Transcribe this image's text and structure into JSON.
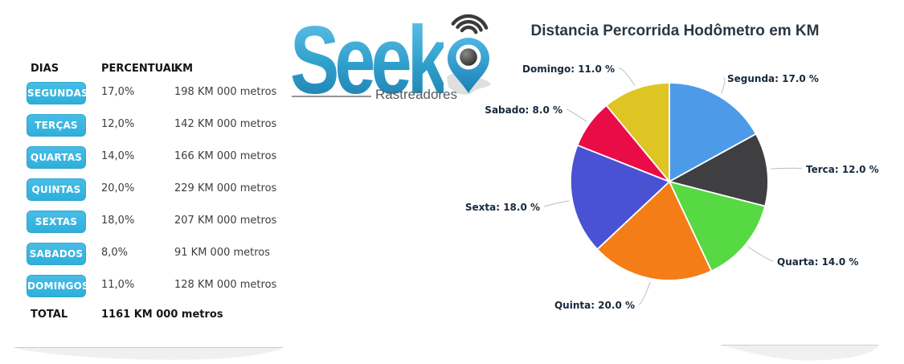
{
  "table": {
    "headers": [
      "DIAS",
      "PERCENTUAL",
      "KM"
    ],
    "rows": [
      {
        "day": "SEGUNDAS",
        "percent": "17,0%",
        "km": "198 KM 000 metros"
      },
      {
        "day": "TERÇAS",
        "percent": "12,0%",
        "km": "142 KM 000 metros"
      },
      {
        "day": "QUARTAS",
        "percent": "14,0%",
        "km": "166 KM 000 metros"
      },
      {
        "day": "QUINTAS",
        "percent": "20,0%",
        "km": "229 KM 000 metros"
      },
      {
        "day": "SEXTAS",
        "percent": "18,0%",
        "km": "207 KM 000 metros"
      },
      {
        "day": "SABADOS",
        "percent": "8,0%",
        "km": "91 KM 000 metros"
      },
      {
        "day": "DOMINGOS",
        "percent": "11,0%",
        "km": "128 KM 000 metros"
      }
    ],
    "total_label": "TOTAL",
    "total_value": "1161 KM 000 metros",
    "button_color": "#3ab4de"
  },
  "logo": {
    "brand": "Seek",
    "subtitle": "Rastreadores",
    "brand_color": "#2e96c4"
  },
  "chart_data": {
    "type": "pie",
    "title": "Distancia Percorrida Hodômetro em KM",
    "categories": [
      "Segunda",
      "Terca",
      "Quarta",
      "Quinta",
      "Sexta",
      "Sabado",
      "Domingo"
    ],
    "values": [
      17.0,
      12.0,
      14.0,
      20.0,
      18.0,
      8.0,
      11.0
    ],
    "unit": "%",
    "labels": [
      "Segunda: 17.0 %",
      "Terca: 12.0 %",
      "Quarta: 14.0 %",
      "Quinta: 20.0 %",
      "Sexta: 18.0 %",
      "Sabado: 8.0 %",
      "Domingo: 11.0 %"
    ],
    "colors": [
      "#4d9be8",
      "#3f3f42",
      "#56d943",
      "#f57d17",
      "#4a52d3",
      "#e90c47",
      "#dfc524"
    ],
    "start_angle_deg": 0,
    "direction": "clockwise",
    "legend_position": "none",
    "label_color": "#16293c"
  }
}
